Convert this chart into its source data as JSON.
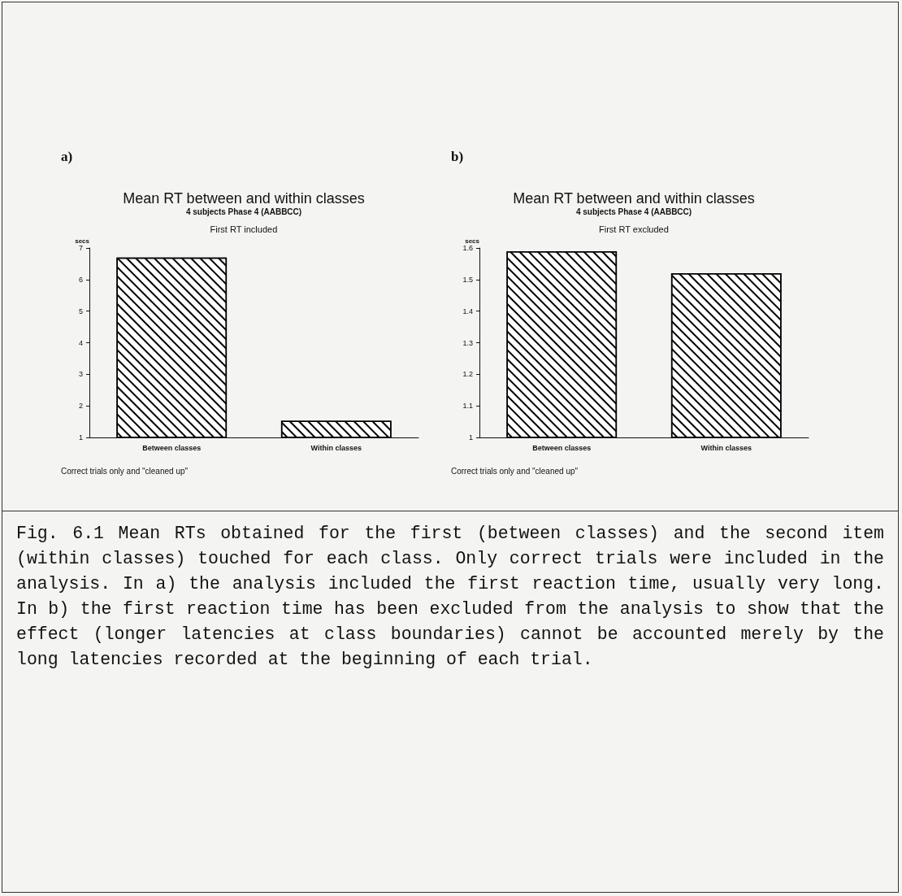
{
  "chart_data": [
    {
      "type": "bar",
      "title": "Mean RT between and within classes",
      "subtitle": "4 subjects Phase 4 (AABBCC)",
      "ylabel": "secs",
      "annotations": [
        "a)",
        "First RT included",
        "Correct trials only and \"cleaned up\""
      ],
      "categories": [
        "Between classes",
        "Within classes"
      ],
      "values": [
        6.7,
        1.53
      ],
      "color": "#000000",
      "ylim": [
        1,
        7
      ],
      "yticks": [
        1,
        2,
        3,
        4,
        5,
        6,
        7
      ],
      "grid": false
    },
    {
      "type": "bar",
      "title": "Mean RT between and within classes",
      "subtitle": "4 subjects Phase 4 (AABBCC)",
      "ylabel": "secs",
      "annotations": [
        "b)",
        "First RT excluded",
        "Correct trials only and \"cleaned up\"",
        "Fig. 6.1 Mean RTs obtained for the first (between classes) and the second item (within classes) touched for each class. Only correct trials were included in the analysis. In a) the analysis included the first reaction time, usually very long. In b) the first reaction time has been excluded from the analysis to show that the effect (longer latencies at class boundaries) cannot be accounted merely by the long latencies recorded at the beginning of each trial."
      ],
      "categories": [
        "Between classes",
        "Within classes"
      ],
      "values": [
        1.59,
        1.52
      ],
      "color": "#000000",
      "ylim": [
        1,
        1.6
      ],
      "yticks": [
        1,
        1.1,
        1.2,
        1.3,
        1.4,
        1.5,
        1.6
      ],
      "grid": false
    }
  ]
}
